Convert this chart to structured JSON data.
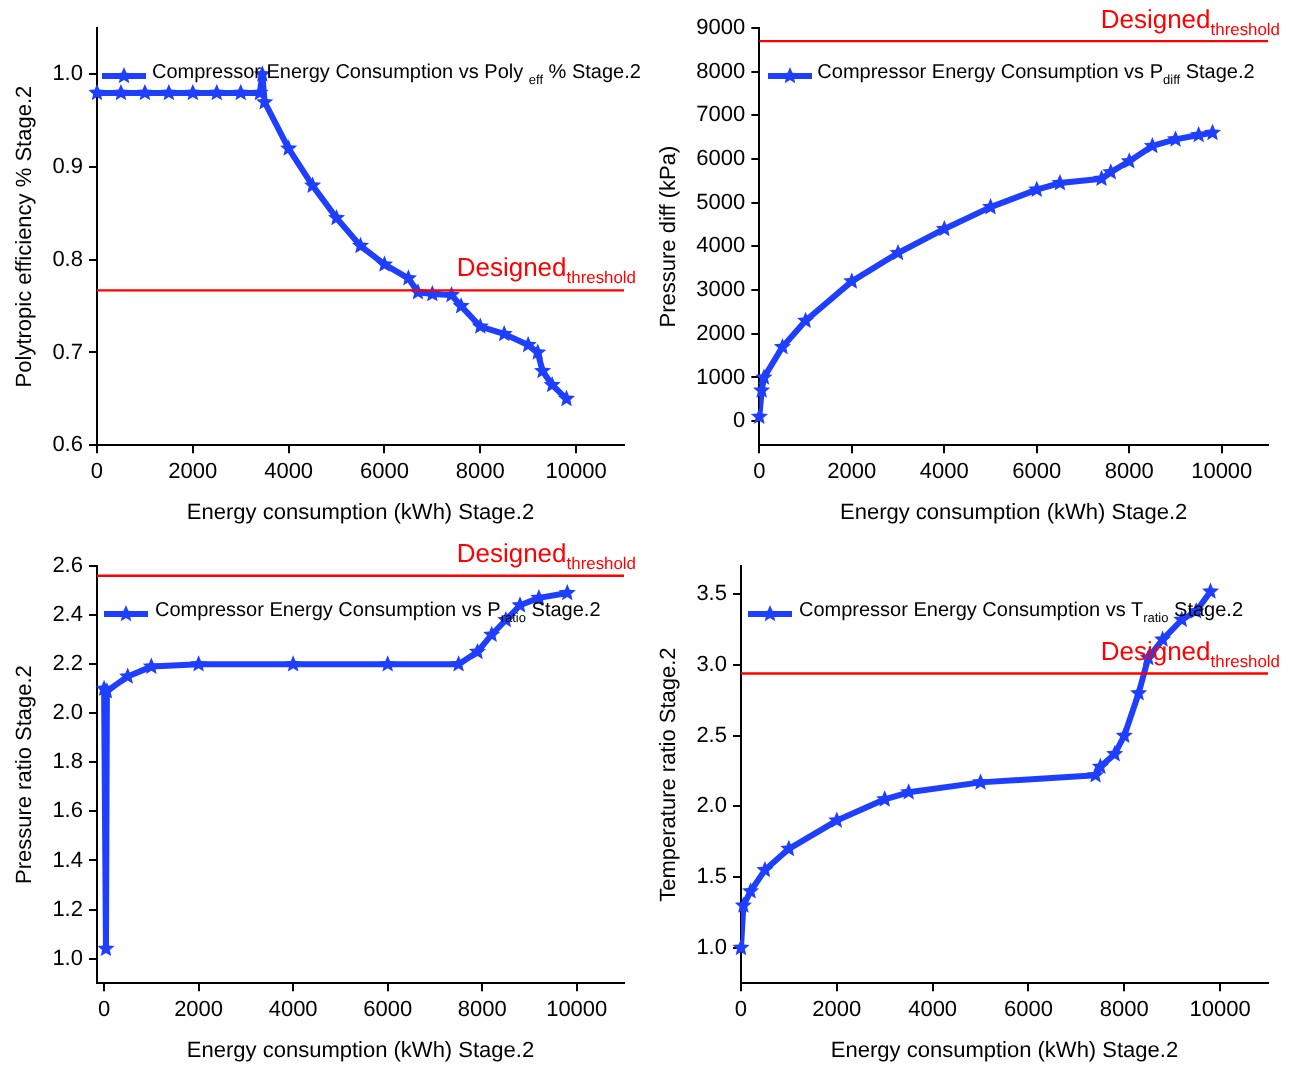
{
  "chart_data": [
    {
      "type": "line",
      "xlabel": "Energy consumption (kWh) Stage.2",
      "ylabel": "Polytropic efficiency % Stage.2",
      "xlim": [
        0,
        11000
      ],
      "xticks": [
        0,
        2000,
        4000,
        6000,
        8000,
        10000
      ],
      "ylim": [
        0.6,
        1.05
      ],
      "yticks": [
        0.6,
        0.7,
        0.8,
        0.9,
        {
          "value": 1,
          "label": "1.0"
        }
      ],
      "grid": false,
      "legend": "top left",
      "marker": "star",
      "line_style": "solid",
      "ref_lines": [
        {
          "axis": "y",
          "value": 0.767,
          "label": "Designed$_{threshold}$",
          "color": "#ff0000"
        }
      ],
      "series": [
        {
          "name": "Compressor Energy Consumption vs Poly $_{eff}$ % Stage.2",
          "color": "#1f3fff",
          "x": [
            0,
            500,
            1000,
            1500,
            2000,
            2500,
            3000,
            3400,
            3450,
            3500,
            4000,
            4500,
            5000,
            5500,
            6000,
            6500,
            6700,
            7000,
            7400,
            7600,
            8000,
            8500,
            9000,
            9200,
            9300,
            9500,
            9800
          ],
          "values": [
            0.98,
            0.98,
            0.98,
            0.98,
            0.98,
            0.98,
            0.98,
            0.98,
            1.0,
            0.97,
            0.92,
            0.88,
            0.845,
            0.815,
            0.795,
            0.78,
            0.765,
            0.763,
            0.762,
            0.75,
            0.728,
            0.72,
            0.708,
            0.7,
            0.68,
            0.665,
            0.65
          ]
        }
      ]
    },
    {
      "type": "line",
      "xlabel": "Energy consumption (kWh) Stage.2",
      "ylabel": "Pressure diff (kPa)",
      "xlim": [
        0,
        11000
      ],
      "xticks": [
        0,
        2000,
        4000,
        6000,
        8000,
        10000
      ],
      "ylim": [
        -550,
        9000
      ],
      "yticks": [
        0,
        1000,
        2000,
        3000,
        4000,
        5000,
        6000,
        7000,
        8000,
        9000
      ],
      "grid": false,
      "legend": "top left",
      "marker": "star",
      "line_style": "solid",
      "ref_lines": [
        {
          "axis": "y",
          "value": 8700,
          "label": "Designed$_{threshold}$",
          "color": "#ff0000"
        }
      ],
      "series": [
        {
          "name": "Compressor Energy Consumption vs P$_{diff}$ Stage.2",
          "color": "#1f3fff",
          "x": [
            0,
            50,
            100,
            500,
            1000,
            2000,
            3000,
            4000,
            5000,
            6000,
            6500,
            7400,
            7600,
            8000,
            8500,
            9000,
            9500,
            9800
          ],
          "values": [
            100,
            700,
            1000,
            1700,
            2300,
            3200,
            3850,
            4400,
            4900,
            5300,
            5450,
            5550,
            5700,
            5950,
            6300,
            6450,
            6550,
            6600
          ]
        }
      ]
    },
    {
      "type": "line",
      "xlabel": "Energy consumption (kWh) Stage.2",
      "ylabel": "Pressure ratio Stage.2",
      "xlim": [
        -150,
        11000
      ],
      "xticks": [
        0,
        2000,
        4000,
        6000,
        8000,
        10000
      ],
      "ylim": [
        0.9,
        2.6
      ],
      "yticks": [
        {
          "value": 1,
          "label": "1.0"
        },
        1.2,
        1.4,
        1.6,
        1.8,
        {
          "value": 2,
          "label": "2.0"
        },
        2.2,
        2.4,
        2.6
      ],
      "grid": false,
      "legend": "top left",
      "marker": "star",
      "line_style": "solid",
      "ref_lines": [
        {
          "axis": "y",
          "value": 2.56,
          "label": "Designed$_{threshold}$",
          "color": "#ff0000"
        }
      ],
      "series": [
        {
          "name": "Compressor Energy Consumption vs P$_{ratio}$ Stage.2",
          "color": "#1f3fff",
          "x": [
            0,
            40,
            60,
            500,
            1000,
            2000,
            4000,
            6000,
            7500,
            7900,
            8200,
            8500,
            8800,
            9200,
            9800
          ],
          "values": [
            2.1,
            1.04,
            2.09,
            2.15,
            2.19,
            2.2,
            2.2,
            2.2,
            2.2,
            2.25,
            2.32,
            2.38,
            2.44,
            2.47,
            2.49
          ]
        }
      ]
    },
    {
      "type": "line",
      "xlabel": "Energy consumption (kWh) Stage.2",
      "ylabel": "Temperature ratio Stage.2",
      "xlim": [
        0,
        11000
      ],
      "xticks": [
        0,
        2000,
        4000,
        6000,
        8000,
        10000
      ],
      "ylim": [
        0.75,
        3.7
      ],
      "yticks": [
        {
          "value": 1,
          "label": "1.0"
        },
        1.5,
        {
          "value": 2,
          "label": "2.0"
        },
        2.5,
        {
          "value": 3,
          "label": "3.0"
        },
        3.5
      ],
      "grid": false,
      "legend": "top left",
      "marker": "star",
      "line_style": "solid",
      "ref_lines": [
        {
          "axis": "y",
          "value": 2.94,
          "label": "Designed$_{threshold}$",
          "color": "#ff0000"
        }
      ],
      "series": [
        {
          "name": "Compressor Energy Consumption vs T$_{ratio}$ Stage.2",
          "color": "#1f3fff",
          "x": [
            0,
            50,
            200,
            500,
            1000,
            2000,
            3000,
            3500,
            5000,
            7400,
            7500,
            7800,
            8000,
            8300,
            8500,
            8800,
            9200,
            9500,
            9800
          ],
          "values": [
            1.0,
            1.3,
            1.4,
            1.55,
            1.7,
            1.9,
            2.05,
            2.1,
            2.17,
            2.22,
            2.28,
            2.37,
            2.5,
            2.8,
            3.05,
            3.18,
            3.32,
            3.38,
            3.52
          ]
        }
      ]
    }
  ]
}
